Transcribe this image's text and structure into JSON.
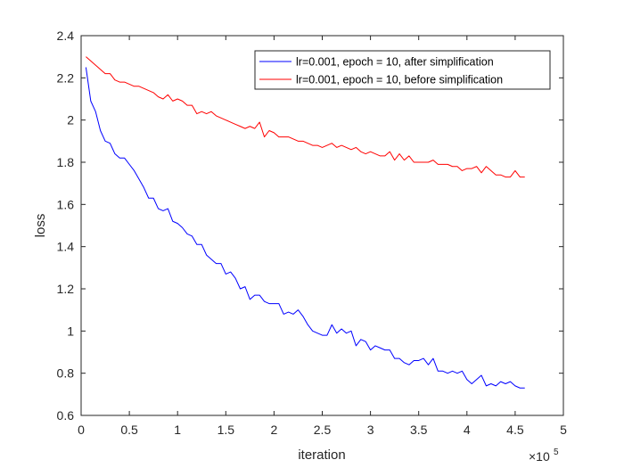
{
  "chart_data": {
    "type": "line",
    "xlabel": "iteration",
    "ylabel": "loss",
    "x_multiplier_label": {
      "base": "×10",
      "exponent": "5"
    },
    "xlim": [
      0,
      5
    ],
    "ylim": [
      0.6,
      2.4
    ],
    "xticks": [
      "0",
      "0.5",
      "1",
      "1.5",
      "2",
      "2.5",
      "3",
      "3.5",
      "4",
      "4.5",
      "5"
    ],
    "yticks": [
      "0.6",
      "0.8",
      "1",
      "1.2",
      "1.4",
      "1.6",
      "1.8",
      "2",
      "2.2",
      "2.4"
    ],
    "grid": false,
    "legend_position": "top-right",
    "series": [
      {
        "name": "lr=0.001, epoch = 10, after simplification",
        "color": "#0000ff",
        "x": [
          0.05,
          0.1,
          0.15,
          0.2,
          0.25,
          0.3,
          0.35,
          0.4,
          0.45,
          0.5,
          0.55,
          0.6,
          0.65,
          0.7,
          0.75,
          0.8,
          0.85,
          0.9,
          0.95,
          1.0,
          1.05,
          1.1,
          1.15,
          1.2,
          1.25,
          1.3,
          1.35,
          1.4,
          1.45,
          1.5,
          1.55,
          1.6,
          1.65,
          1.7,
          1.75,
          1.8,
          1.85,
          1.9,
          1.95,
          2.0,
          2.05,
          2.1,
          2.15,
          2.2,
          2.25,
          2.3,
          2.35,
          2.4,
          2.45,
          2.5,
          2.55,
          2.6,
          2.65,
          2.7,
          2.75,
          2.8,
          2.85,
          2.9,
          2.95,
          3.0,
          3.05,
          3.1,
          3.15,
          3.2,
          3.25,
          3.3,
          3.35,
          3.4,
          3.45,
          3.5,
          3.55,
          3.6,
          3.65,
          3.7,
          3.75,
          3.8,
          3.85,
          3.9,
          3.95,
          4.0,
          4.05,
          4.1,
          4.15,
          4.2,
          4.25,
          4.3,
          4.35,
          4.4,
          4.45,
          4.5,
          4.55,
          4.6
        ],
        "y": [
          2.25,
          2.09,
          2.04,
          1.95,
          1.9,
          1.89,
          1.84,
          1.82,
          1.82,
          1.79,
          1.76,
          1.72,
          1.68,
          1.63,
          1.63,
          1.58,
          1.57,
          1.58,
          1.52,
          1.51,
          1.49,
          1.46,
          1.45,
          1.41,
          1.41,
          1.36,
          1.34,
          1.32,
          1.32,
          1.27,
          1.28,
          1.25,
          1.2,
          1.21,
          1.15,
          1.17,
          1.17,
          1.14,
          1.13,
          1.13,
          1.13,
          1.08,
          1.09,
          1.08,
          1.1,
          1.07,
          1.03,
          1.0,
          0.99,
          0.98,
          0.98,
          1.03,
          0.99,
          1.01,
          0.99,
          1.0,
          0.93,
          0.96,
          0.95,
          0.91,
          0.93,
          0.92,
          0.91,
          0.91,
          0.87,
          0.87,
          0.85,
          0.84,
          0.86,
          0.86,
          0.87,
          0.84,
          0.87,
          0.81,
          0.81,
          0.8,
          0.81,
          0.8,
          0.81,
          0.77,
          0.75,
          0.77,
          0.79,
          0.74,
          0.75,
          0.74,
          0.76,
          0.75,
          0.76,
          0.74,
          0.73,
          0.73
        ]
      },
      {
        "name": "lr=0.001, epoch = 10, before simplification",
        "color": "#ff0000",
        "x": [
          0.05,
          0.1,
          0.15,
          0.2,
          0.25,
          0.3,
          0.35,
          0.4,
          0.45,
          0.5,
          0.55,
          0.6,
          0.65,
          0.7,
          0.75,
          0.8,
          0.85,
          0.9,
          0.95,
          1.0,
          1.05,
          1.1,
          1.15,
          1.2,
          1.25,
          1.3,
          1.35,
          1.4,
          1.45,
          1.5,
          1.55,
          1.6,
          1.65,
          1.7,
          1.75,
          1.8,
          1.85,
          1.9,
          1.95,
          2.0,
          2.05,
          2.1,
          2.15,
          2.2,
          2.25,
          2.3,
          2.35,
          2.4,
          2.45,
          2.5,
          2.55,
          2.6,
          2.65,
          2.7,
          2.75,
          2.8,
          2.85,
          2.9,
          2.95,
          3.0,
          3.05,
          3.1,
          3.15,
          3.2,
          3.25,
          3.3,
          3.35,
          3.4,
          3.45,
          3.5,
          3.55,
          3.6,
          3.65,
          3.7,
          3.75,
          3.8,
          3.85,
          3.9,
          3.95,
          4.0,
          4.05,
          4.1,
          4.15,
          4.2,
          4.25,
          4.3,
          4.35,
          4.4,
          4.45,
          4.5,
          4.55,
          4.6
        ],
        "y": [
          2.3,
          2.28,
          2.26,
          2.24,
          2.22,
          2.22,
          2.19,
          2.18,
          2.18,
          2.17,
          2.16,
          2.16,
          2.15,
          2.14,
          2.13,
          2.11,
          2.1,
          2.12,
          2.09,
          2.1,
          2.09,
          2.07,
          2.07,
          2.03,
          2.04,
          2.03,
          2.04,
          2.02,
          2.01,
          2.0,
          1.99,
          1.98,
          1.97,
          1.96,
          1.97,
          1.96,
          1.99,
          1.92,
          1.95,
          1.94,
          1.92,
          1.92,
          1.92,
          1.91,
          1.9,
          1.9,
          1.89,
          1.88,
          1.88,
          1.87,
          1.88,
          1.89,
          1.87,
          1.88,
          1.87,
          1.86,
          1.87,
          1.85,
          1.84,
          1.85,
          1.84,
          1.83,
          1.83,
          1.85,
          1.81,
          1.84,
          1.81,
          1.83,
          1.8,
          1.8,
          1.8,
          1.8,
          1.81,
          1.79,
          1.79,
          1.79,
          1.78,
          1.78,
          1.76,
          1.77,
          1.77,
          1.78,
          1.75,
          1.78,
          1.76,
          1.74,
          1.74,
          1.73,
          1.73,
          1.76,
          1.73,
          1.73
        ]
      }
    ]
  }
}
